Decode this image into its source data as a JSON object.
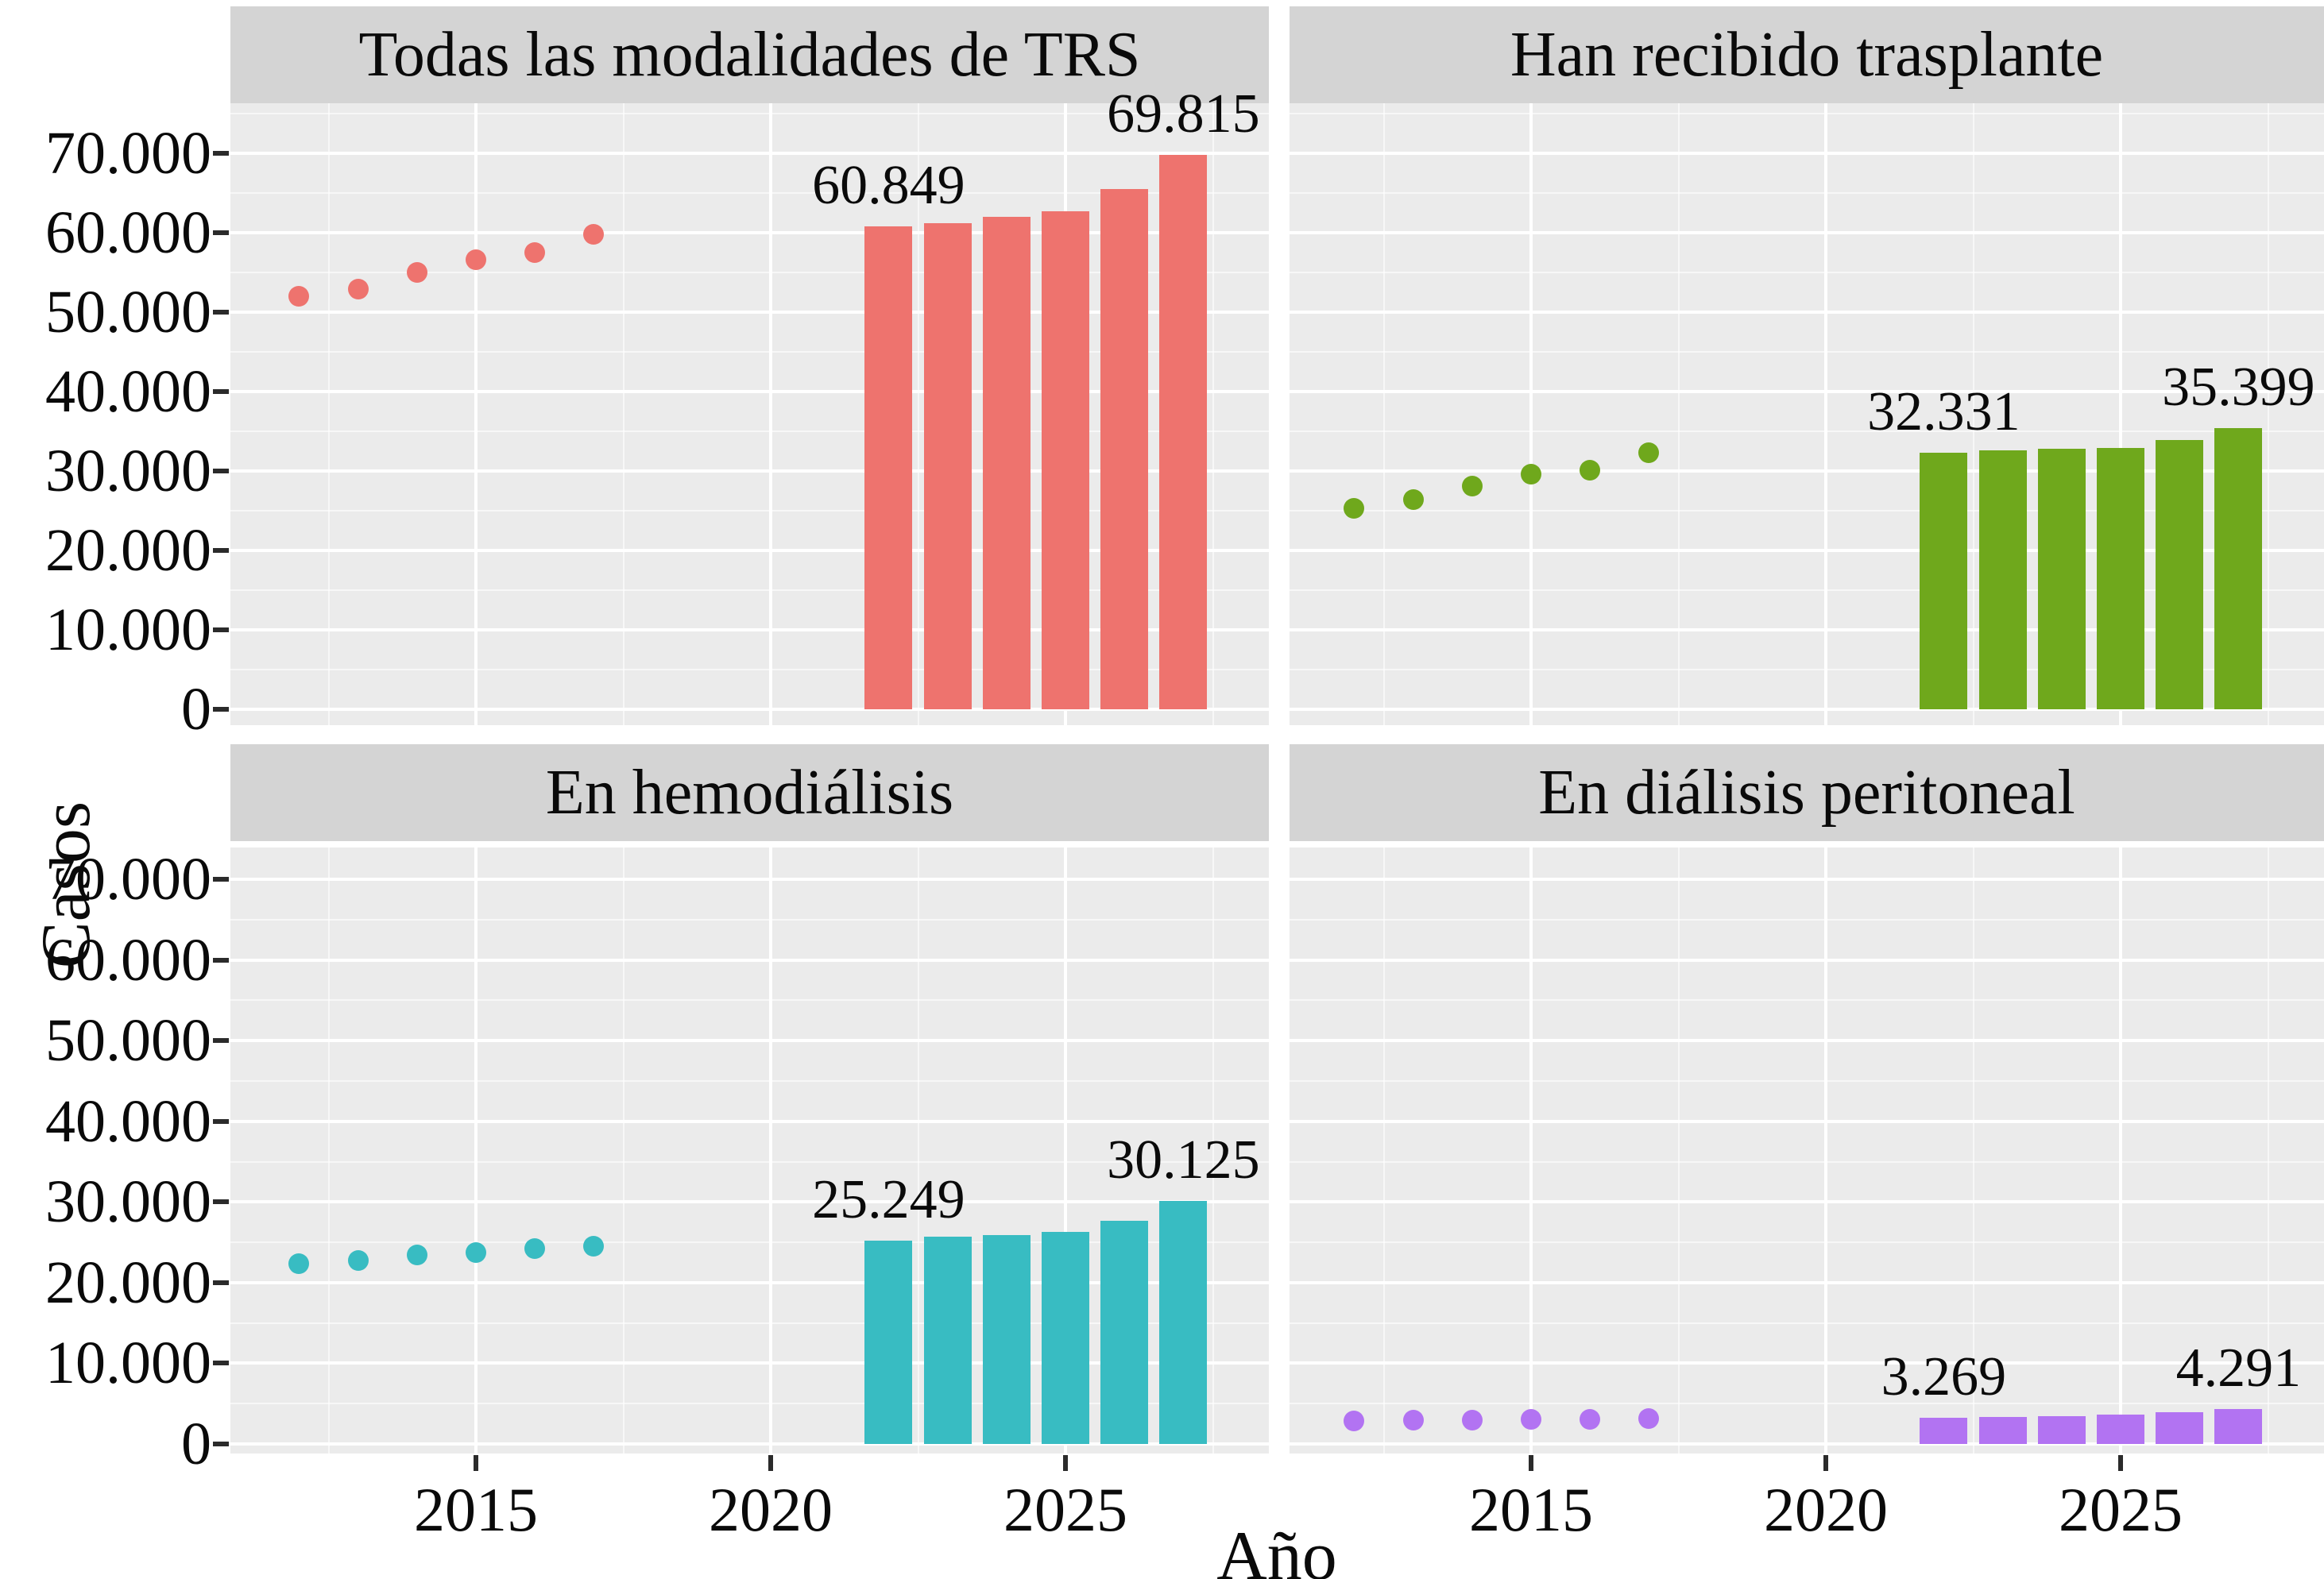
{
  "figure": {
    "y_axis_title": "Casos",
    "x_axis_title": "Año",
    "y_tick_values": [
      0,
      10000,
      20000,
      30000,
      40000,
      50000,
      60000,
      70000
    ],
    "y_tick_labels": [
      "0",
      "10.000",
      "20.000",
      "30.000",
      "40.000",
      "50.000",
      "60.000",
      "70.000"
    ],
    "x_tick_values": [
      2015,
      2020,
      2025
    ],
    "x_tick_labels": [
      "2015",
      "2020",
      "2025"
    ],
    "background_color": "#ebebeb",
    "strip_color": "#d4d4d4",
    "gridline_color": "#ffffff"
  },
  "chart_data": [
    {
      "type": "scatter+bar",
      "title": "Todas las modalidades de TRS",
      "color": "#ee736e",
      "xlabel": "Año",
      "ylabel": "Casos",
      "x_ticks": [
        2015,
        2020,
        2025
      ],
      "y_ticks": [
        0,
        10000,
        20000,
        30000,
        40000,
        50000,
        60000,
        70000
      ],
      "ylim": [
        0,
        77000
      ],
      "xlim": [
        2011,
        2028.5
      ],
      "grid": true,
      "x_observed": [
        2012,
        2013,
        2014,
        2015,
        2016,
        2017
      ],
      "y_observed": [
        52000,
        52900,
        55000,
        56600,
        57500,
        59800
      ],
      "x_projected": [
        2022,
        2023,
        2024,
        2025,
        2026,
        2027
      ],
      "y_projected": [
        60849,
        61200,
        62000,
        62700,
        65500,
        69815
      ],
      "bar_labels": [
        "60.849",
        null,
        null,
        null,
        null,
        "69.815"
      ]
    },
    {
      "type": "scatter+bar",
      "title": "Han recibido trasplante",
      "color": "#6fa81c",
      "xlabel": "Año",
      "ylabel": "Casos",
      "x_ticks": [
        2015,
        2020,
        2025
      ],
      "y_ticks": [
        0,
        10000,
        20000,
        30000,
        40000,
        50000,
        60000,
        70000
      ],
      "ylim": [
        0,
        77000
      ],
      "xlim": [
        2011,
        2028.5
      ],
      "grid": true,
      "x_observed": [
        2012,
        2013,
        2014,
        2015,
        2016,
        2017
      ],
      "y_observed": [
        25300,
        26400,
        28100,
        29600,
        30100,
        32300
      ],
      "x_projected": [
        2022,
        2023,
        2024,
        2025,
        2026,
        2027
      ],
      "y_projected": [
        32331,
        32600,
        32800,
        32950,
        33900,
        35399
      ],
      "bar_labels": [
        "32.331",
        null,
        null,
        null,
        null,
        "35.399"
      ]
    },
    {
      "type": "scatter+bar",
      "title": "En hemodiálisis",
      "color": "#38bcc2",
      "xlabel": "Año",
      "ylabel": "Casos",
      "x_ticks": [
        2015,
        2020,
        2025
      ],
      "y_ticks": [
        0,
        10000,
        20000,
        30000,
        40000,
        50000,
        60000,
        70000
      ],
      "ylim": [
        0,
        77000
      ],
      "xlim": [
        2011,
        2028.5
      ],
      "grid": true,
      "x_observed": [
        2012,
        2013,
        2014,
        2015,
        2016,
        2017
      ],
      "y_observed": [
        22300,
        22700,
        23400,
        23700,
        24200,
        24500
      ],
      "x_projected": [
        2022,
        2023,
        2024,
        2025,
        2026,
        2027
      ],
      "y_projected": [
        25249,
        25650,
        25900,
        26300,
        27700,
        30125
      ],
      "bar_labels": [
        "25.249",
        null,
        null,
        null,
        null,
        "30.125"
      ]
    },
    {
      "type": "scatter+bar",
      "title": "En diálisis peritoneal",
      "color": "#b273f2",
      "xlabel": "Año",
      "ylabel": "Casos",
      "x_ticks": [
        2015,
        2020,
        2025
      ],
      "y_ticks": [
        0,
        10000,
        20000,
        30000,
        40000,
        50000,
        60000,
        70000
      ],
      "ylim": [
        0,
        77000
      ],
      "xlim": [
        2011,
        2028.5
      ],
      "grid": true,
      "x_observed": [
        2012,
        2013,
        2014,
        2015,
        2016,
        2017
      ],
      "y_observed": [
        2900,
        2950,
        3000,
        3050,
        3100,
        3150
      ],
      "x_projected": [
        2022,
        2023,
        2024,
        2025,
        2026,
        2027
      ],
      "y_projected": [
        3269,
        3350,
        3450,
        3600,
        3900,
        4291
      ],
      "bar_labels": [
        "3.269",
        null,
        null,
        null,
        null,
        "4.291"
      ]
    }
  ]
}
